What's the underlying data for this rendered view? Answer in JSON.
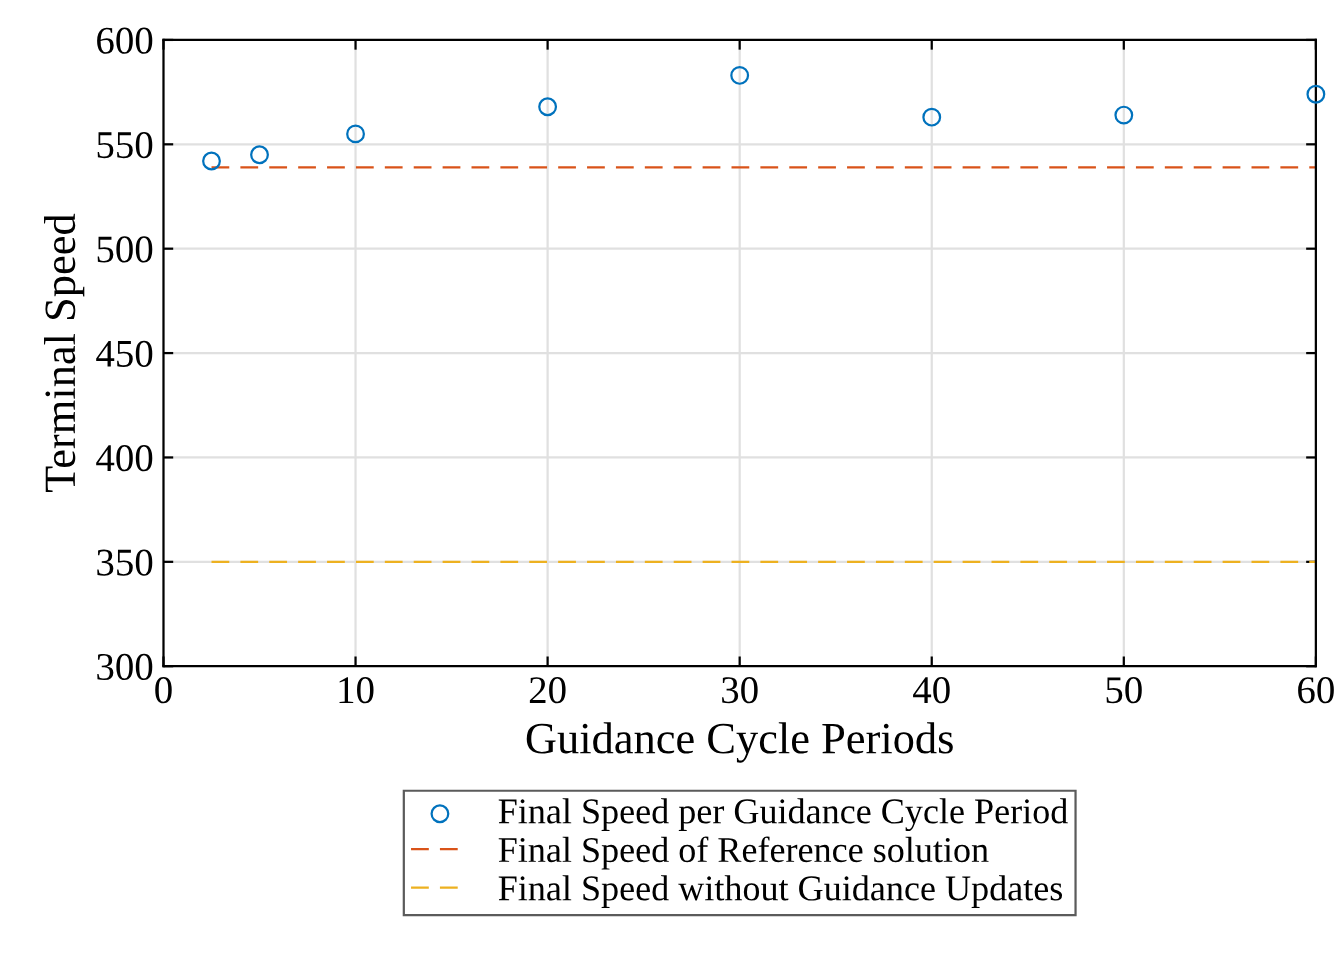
{
  "chart_data": {
    "type": "scatter",
    "xlabel": "Guidance Cycle Periods",
    "ylabel": "Terminal Speed",
    "series": [
      {
        "name": "Final Speed per Guidance Cycle Period",
        "color": "#0072bd",
        "marker": "circle",
        "x": [
          2.5,
          5,
          10,
          20,
          30,
          40,
          50,
          60
        ],
        "values": [
          542,
          545,
          555,
          568,
          583,
          563,
          564,
          574
        ]
      },
      {
        "name": "Final Speed of Reference solution",
        "type": "line",
        "color": "#d95319",
        "line_style": "dashed",
        "x": [
          2.5,
          60
        ],
        "values": [
          539,
          539
        ]
      },
      {
        "name": "Final Speed without Guidance Updates",
        "type": "line",
        "color": "#edb120",
        "line_style": "dashed",
        "x": [
          2.5,
          60
        ],
        "values": [
          350,
          350
        ]
      }
    ],
    "xlim": [
      0,
      60
    ],
    "xticks": [
      0,
      10,
      20,
      30,
      40,
      50,
      60
    ],
    "ylim": [
      300,
      600
    ],
    "yticks": [
      300,
      350,
      400,
      450,
      500,
      550,
      600
    ],
    "grid": true,
    "legend": "bottom"
  }
}
